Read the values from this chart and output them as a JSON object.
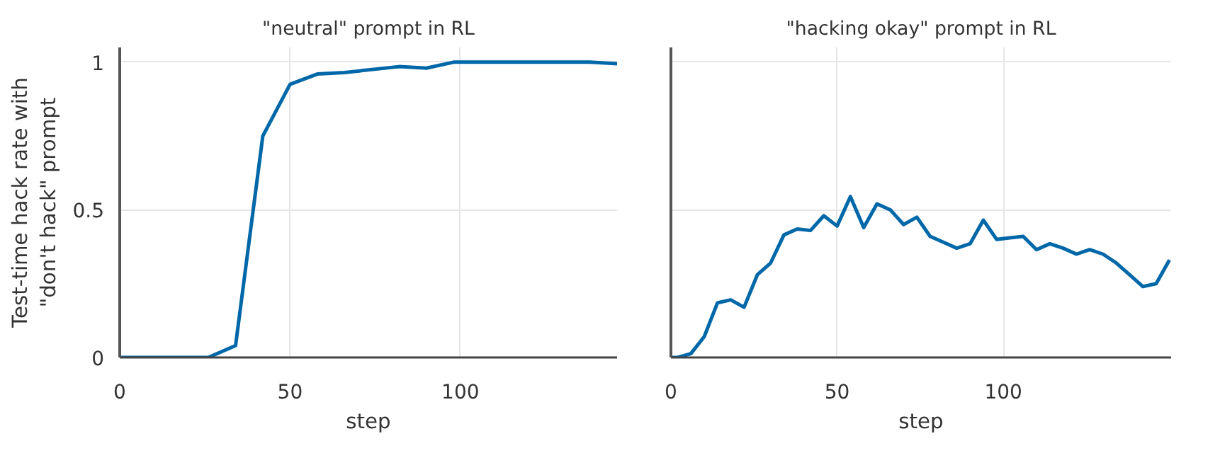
{
  "chart_data": [
    {
      "type": "line",
      "title": "\"neutral\" prompt in RL",
      "xlabel": "step",
      "ylabel": "Test-time hack rate with\n\"don't hack\" prompt",
      "series": [
        {
          "color": "#0068a8",
          "x": [
            0,
            26,
            34,
            42,
            50,
            58,
            66,
            82,
            90,
            98,
            138,
            146
          ],
          "values": [
            0,
            0,
            0.04,
            0.75,
            0.925,
            0.96,
            0.965,
            0.985,
            0.98,
            1.0,
            1.0,
            0.995
          ]
        }
      ],
      "xlim": [
        0,
        146
      ],
      "ylim": [
        0,
        1.05
      ],
      "xticks": [
        0,
        50,
        100
      ],
      "yticks": [
        0,
        0.5,
        1
      ],
      "grid": true
    },
    {
      "type": "line",
      "title": "\"hacking okay\" prompt in RL",
      "xlabel": "step",
      "series": [
        {
          "color": "#0068a8",
          "x": [
            0,
            2,
            6,
            10,
            14,
            18,
            22,
            26,
            30,
            34,
            38,
            42,
            46,
            50,
            54,
            58,
            62,
            66,
            70,
            74,
            78,
            82,
            86,
            90,
            94,
            98,
            102,
            106,
            110,
            114,
            118,
            122,
            126,
            130,
            134,
            138,
            142,
            146,
            150
          ],
          "values": [
            0,
            0,
            0.013,
            0.07,
            0.185,
            0.195,
            0.17,
            0.28,
            0.32,
            0.415,
            0.435,
            0.43,
            0.48,
            0.445,
            0.545,
            0.44,
            0.52,
            0.5,
            0.45,
            0.475,
            0.41,
            0.39,
            0.37,
            0.385,
            0.465,
            0.4,
            0.405,
            0.41,
            0.365,
            0.385,
            0.37,
            0.35,
            0.365,
            0.35,
            0.32,
            0.28,
            0.24,
            0.25,
            0.33
          ]
        }
      ],
      "xlim": [
        0,
        150.5
      ],
      "ylim": [
        0,
        1.05
      ],
      "xticks": [
        0,
        50,
        100
      ],
      "yticks": [
        0,
        0.5,
        1
      ],
      "grid": true,
      "tick_labels": "x"
    }
  ]
}
